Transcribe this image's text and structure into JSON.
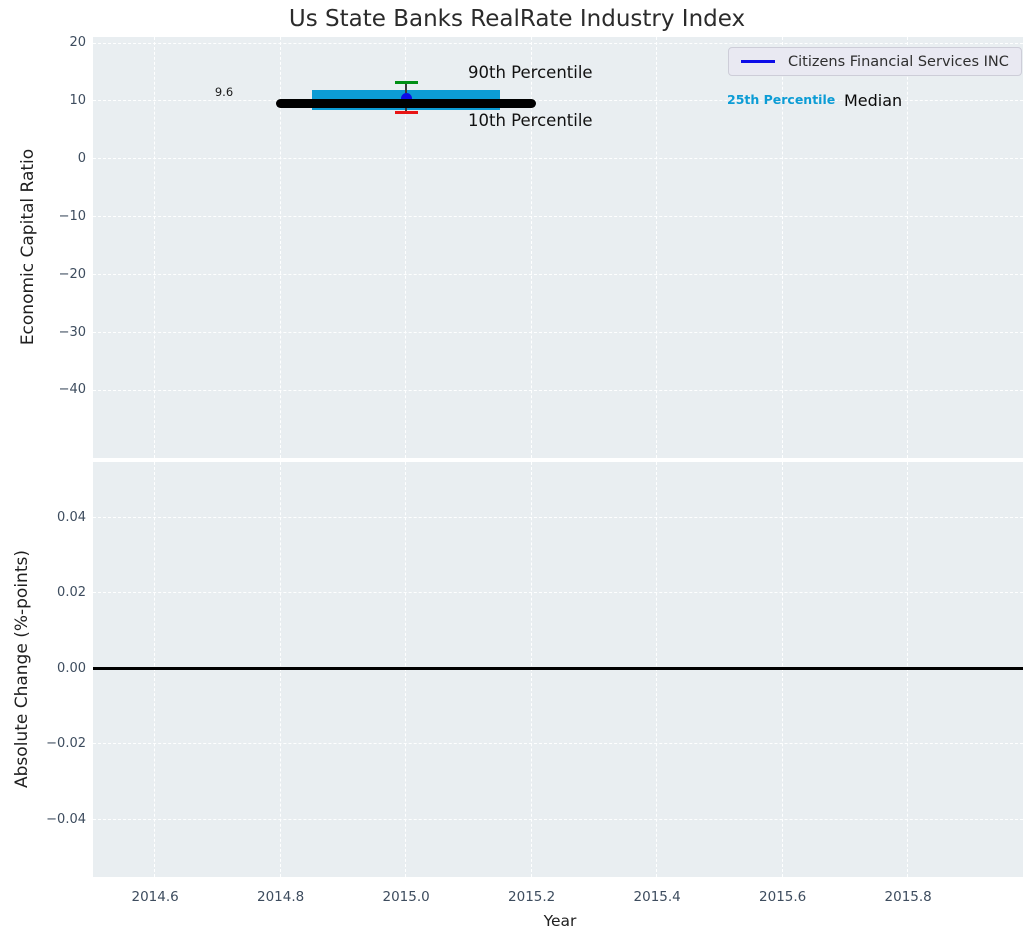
{
  "figure": {
    "title": "Us State Banks RealRate Industry Index",
    "xlabel": "Year",
    "panel1_ylabel": "Economic Capital Ratio",
    "panel2_ylabel": "Absolute Change (%-points)"
  },
  "legend": {
    "label": "Citizens Financial Services INC"
  },
  "annotations": {
    "p90_label": "90th Percentile",
    "p10_label": "10th Percentile",
    "p25_label": "25th Percentile",
    "median_label": "Median",
    "median_value": "9.6"
  },
  "colors": {
    "band": "#0c9cd5",
    "median_line": "#000000",
    "p90_cap": "#008f14",
    "p10_cap": "#e81414",
    "company_marker": "#0d0de8",
    "errorbar_line": "#3a3a3a",
    "axes_bg": "#e9eef1",
    "grid": "#ffffff",
    "tick_label": "#3d4c5e",
    "zero_line": "#000000",
    "p25_text": "#0c9cd5"
  },
  "chart_data": [
    {
      "type": "scatter",
      "panel": "top",
      "title": "Us State Banks RealRate Industry Index",
      "ylabel": "Economic Capital Ratio",
      "grid": "white dashed",
      "legend_position": "upper right",
      "xlim": [
        2014.501,
        2015.983
      ],
      "ylim": [
        -51.7,
        21.1
      ],
      "xticks": {
        "values": [
          2014.6,
          2014.8,
          2015.0,
          2015.2,
          2015.4,
          2015.6,
          2015.8
        ],
        "labels": [
          "2014.6",
          "2014.8",
          "2015.0",
          "2015.2",
          "2015.4",
          "2015.6",
          "2015.8"
        ]
      },
      "yticks": {
        "values": [
          20,
          10,
          0,
          -10,
          -20,
          -30,
          -40
        ],
        "labels": [
          "20",
          "10",
          "0",
          "−10",
          "−20",
          "−30",
          "−40"
        ]
      },
      "x": [
        2015.0
      ],
      "series": [
        {
          "name": "Citizens Financial Services INC",
          "values": [
            10.4
          ],
          "marker": "circle"
        },
        {
          "name": "Median",
          "values": [
            9.6
          ],
          "x_span": [
            2014.8,
            2015.2
          ],
          "style": "thick black line"
        },
        {
          "name": "25th-75th Percentile Band",
          "low": 8.5,
          "high": 11.9,
          "x_span": [
            2014.85,
            2015.15
          ]
        },
        {
          "name": "90th Percentile",
          "values": [
            13.2
          ],
          "style": "errorbar top cap"
        },
        {
          "name": "10th Percentile",
          "values": [
            8.0
          ],
          "style": "errorbar bottom cap"
        }
      ]
    },
    {
      "type": "line",
      "panel": "bottom",
      "ylabel": "Absolute Change (%-points)",
      "xlabel": "Year",
      "grid": "white dashed",
      "xlim": [
        2014.501,
        2015.983
      ],
      "ylim": [
        -0.0552,
        0.0547
      ],
      "xticks": {
        "values": [
          2014.6,
          2014.8,
          2015.0,
          2015.2,
          2015.4,
          2015.6,
          2015.8
        ],
        "labels": [
          "2014.6",
          "2014.8",
          "2015.0",
          "2015.2",
          "2015.4",
          "2015.6",
          "2015.8"
        ]
      },
      "yticks": {
        "values": [
          0.04,
          0.02,
          0.0,
          -0.02,
          -0.04
        ],
        "labels": [
          "0.04",
          "0.02",
          "0.00",
          "−0.02",
          "−0.04"
        ]
      },
      "zero_line": 0.0,
      "series": []
    }
  ]
}
